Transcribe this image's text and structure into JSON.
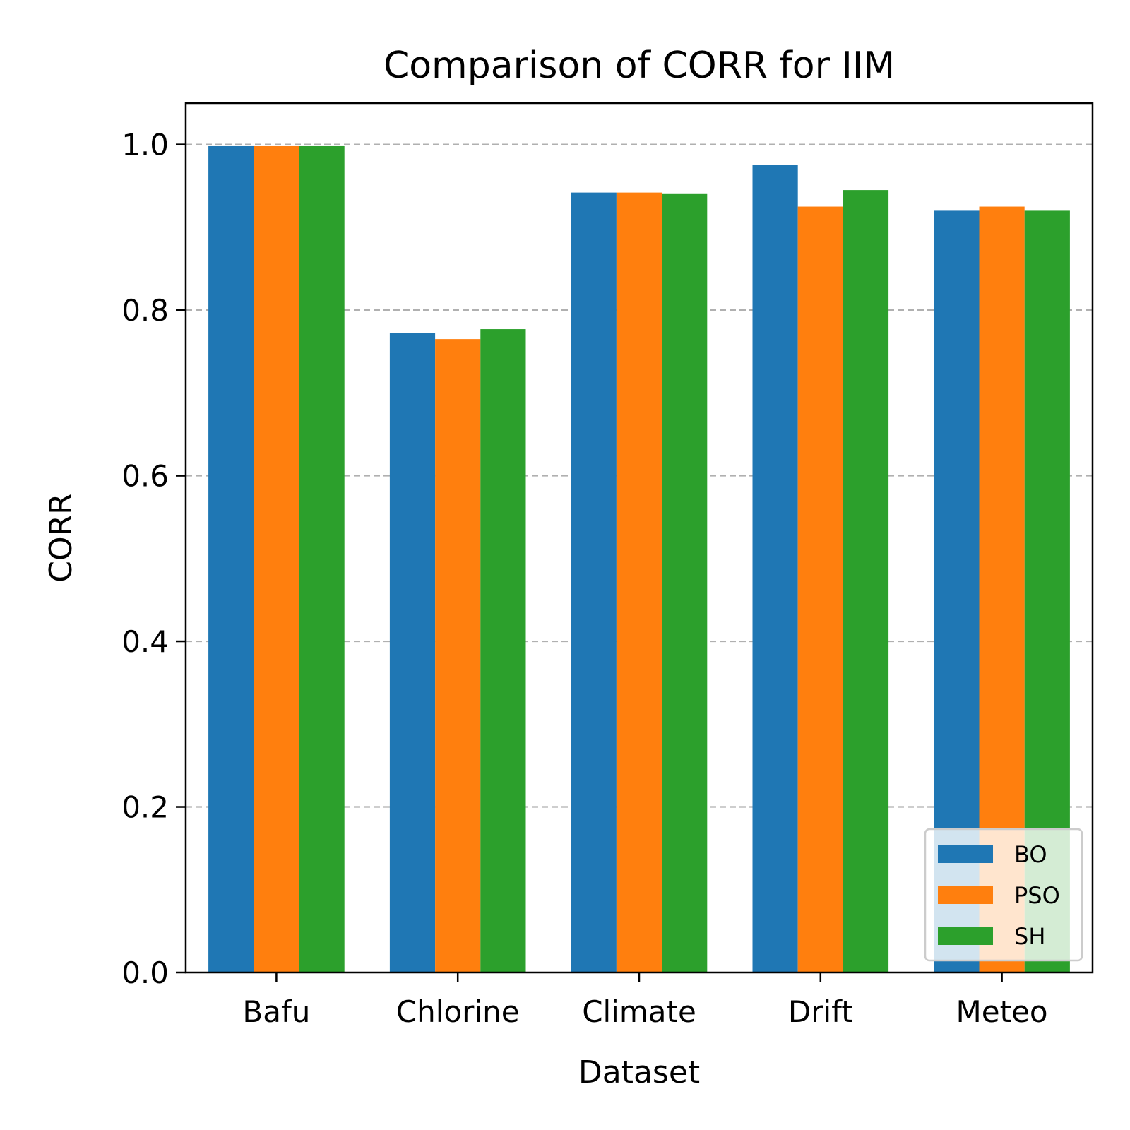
{
  "chart_data": {
    "type": "bar",
    "title": "Comparison of CORR for IIM",
    "xlabel": "Dataset",
    "ylabel": "CORR",
    "categories": [
      "Bafu",
      "Chlorine",
      "Climate",
      "Drift",
      "Meteo"
    ],
    "series": [
      {
        "name": "BO",
        "color": "#1f77b4",
        "values": [
          0.998,
          0.772,
          0.942,
          0.975,
          0.92
        ]
      },
      {
        "name": "PSO",
        "color": "#ff7f0e",
        "values": [
          0.998,
          0.765,
          0.942,
          0.925,
          0.925
        ]
      },
      {
        "name": "SH",
        "color": "#2ca02c",
        "values": [
          0.998,
          0.777,
          0.941,
          0.945,
          0.92
        ]
      }
    ],
    "ylim": [
      0,
      1.05
    ],
    "yticks": [
      0.0,
      0.2,
      0.4,
      0.6,
      0.8,
      1.0
    ],
    "ytick_labels": [
      "0.0",
      "0.2",
      "0.4",
      "0.6",
      "0.8",
      "1.0"
    ],
    "grid": "y-dashed",
    "legend_position": "lower-right"
  }
}
